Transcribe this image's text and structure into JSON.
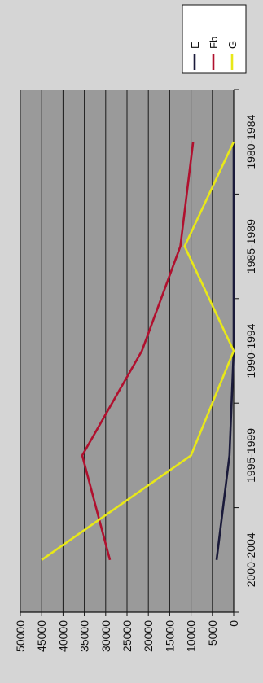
{
  "chart_data": {
    "type": "line",
    "orientation": "rotated-90",
    "categories": [
      "1980-1984",
      "1985-1989",
      "1990-1994",
      "1995-1999",
      "2000-2004"
    ],
    "series": [
      {
        "name": "E",
        "color": "#1a1a3a",
        "values": [
          0,
          0,
          0,
          1000,
          4000
        ]
      },
      {
        "name": "Fb",
        "color": "#b0102e",
        "values": [
          9500,
          12500,
          21500,
          35500,
          29000
        ]
      },
      {
        "name": "G",
        "color": "#e8e818",
        "values": [
          0,
          11500,
          0,
          10000,
          45000
        ]
      }
    ],
    "ylim": [
      0,
      50000
    ],
    "yticks": [
      0,
      5000,
      10000,
      15000,
      20000,
      25000,
      30000,
      35000,
      40000,
      45000,
      50000
    ],
    "grid": true,
    "plot_background": "#9a9a9a",
    "legend_position": "top-right"
  }
}
